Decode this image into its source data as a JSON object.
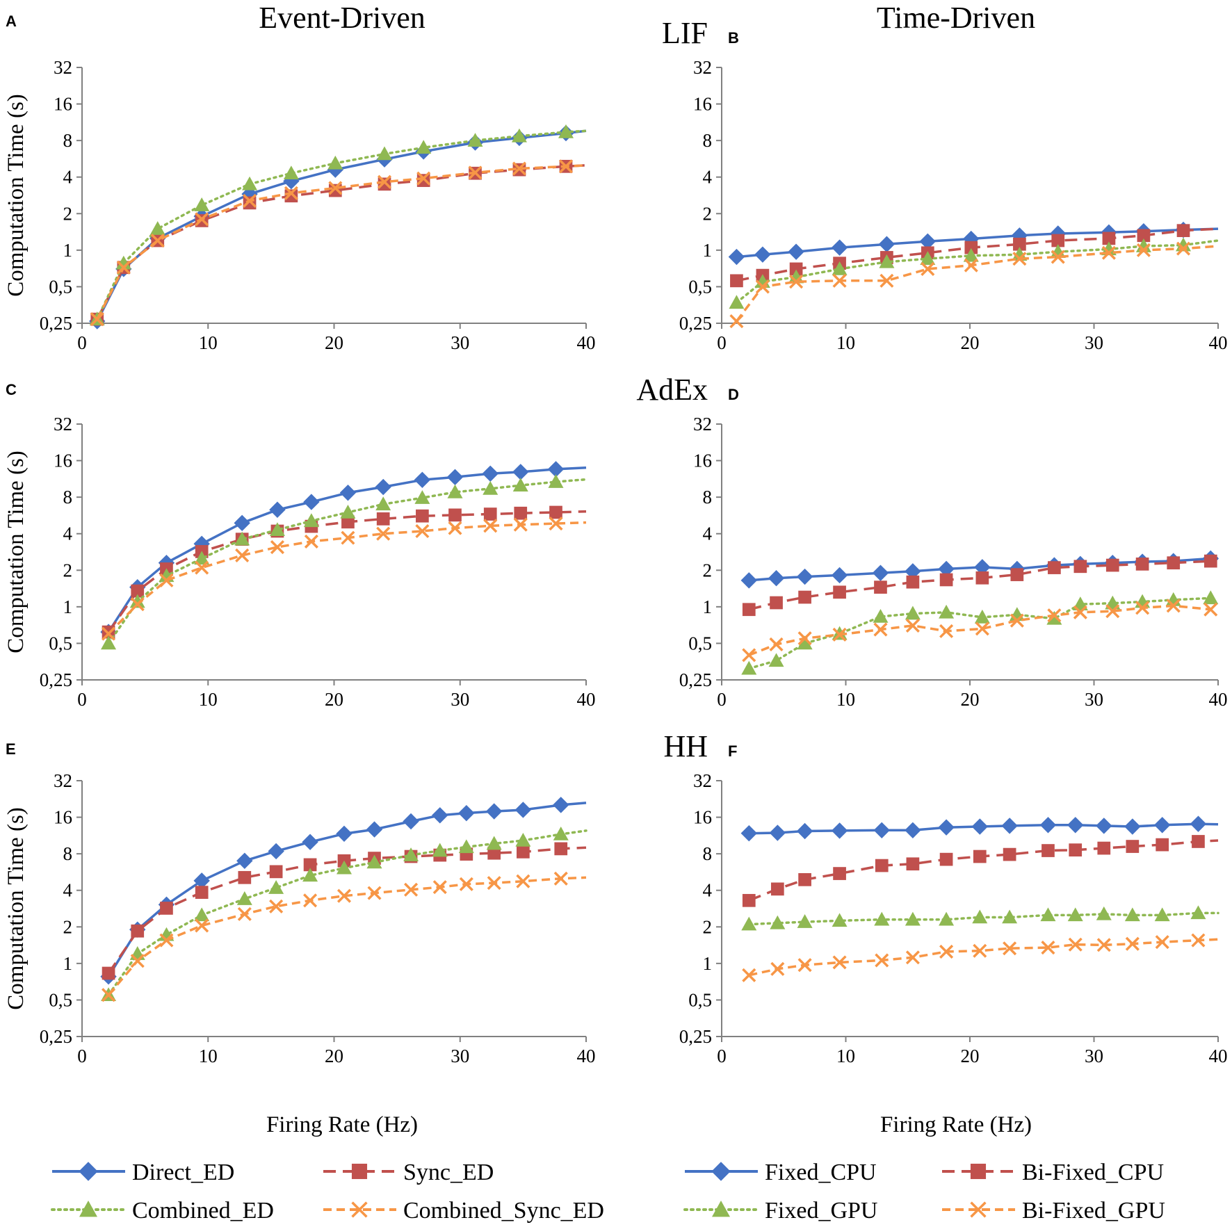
{
  "figure": {
    "col_titles": [
      "Event-Driven",
      "Time-Driven"
    ],
    "row_titles": [
      "LIF",
      "AdEx",
      "HH"
    ],
    "xlabel": "Firing Rate (Hz)",
    "ylabel": "Computation Time (s)"
  },
  "chart_data": [
    {
      "panel": "A",
      "model": "LIF",
      "group": "Event-Driven",
      "type": "line",
      "xlim": [
        0,
        40
      ],
      "xticks": [
        0,
        10,
        20,
        30,
        40
      ],
      "yscale": "log2",
      "ylim": [
        0.25,
        32
      ],
      "ytick_labels": [
        "0,25",
        "0,5",
        "1",
        "2",
        "4",
        "8",
        "16",
        "32"
      ],
      "xlabel": "",
      "ylabel": "Computation Time (s)",
      "series": [
        {
          "name": "Direct_ED",
          "x": [
            1.2,
            3.3,
            6.0,
            9.5,
            13.3,
            16.6,
            20.1,
            24.0,
            27.1,
            31.2,
            34.7,
            38.4,
            40
          ],
          "y": [
            0.26,
            0.7,
            1.25,
            1.9,
            2.9,
            3.7,
            4.6,
            5.6,
            6.5,
            7.7,
            8.4,
            9.2,
            9.6
          ]
        },
        {
          "name": "Sync_ED",
          "x": [
            1.2,
            3.3,
            6.0,
            9.5,
            13.3,
            16.6,
            20.1,
            24.0,
            27.1,
            31.2,
            34.7,
            38.4,
            40
          ],
          "y": [
            0.27,
            0.72,
            1.2,
            1.75,
            2.45,
            2.8,
            3.1,
            3.5,
            3.75,
            4.3,
            4.6,
            4.9,
            5.0
          ]
        },
        {
          "name": "Combined_ED",
          "x": [
            1.2,
            3.3,
            6.0,
            9.5,
            13.3,
            16.6,
            20.1,
            24.0,
            27.1,
            31.2,
            34.7,
            38.4,
            40
          ],
          "y": [
            0.27,
            0.78,
            1.5,
            2.35,
            3.5,
            4.3,
            5.2,
            6.2,
            7.0,
            8.0,
            8.7,
            9.4,
            9.6
          ]
        },
        {
          "name": "Combined_Sync_ED",
          "x": [
            1.2,
            3.3,
            6.0,
            9.5,
            13.3,
            16.6,
            20.1,
            24.0,
            27.1,
            31.2,
            34.7,
            38.4,
            40
          ],
          "y": [
            0.27,
            0.72,
            1.2,
            1.8,
            2.55,
            2.95,
            3.25,
            3.65,
            3.9,
            4.35,
            4.7,
            4.9,
            5.0
          ]
        }
      ]
    },
    {
      "panel": "B",
      "model": "LIF",
      "group": "Time-Driven",
      "type": "line",
      "xlim": [
        0,
        40
      ],
      "xticks": [
        0,
        10,
        20,
        30,
        40
      ],
      "yscale": "log2",
      "ylim": [
        0.25,
        32
      ],
      "ytick_labels": [
        "0,25",
        "0,5",
        "1",
        "2",
        "4",
        "8",
        "16",
        "32"
      ],
      "xlabel": "",
      "ylabel": "",
      "series": [
        {
          "name": "Fixed_CPU",
          "x": [
            1.2,
            3.3,
            6.0,
            9.5,
            13.3,
            16.6,
            20.1,
            24.0,
            27.1,
            31.2,
            34.0,
            37.2,
            40
          ],
          "y": [
            0.88,
            0.92,
            0.97,
            1.05,
            1.12,
            1.18,
            1.24,
            1.32,
            1.37,
            1.4,
            1.43,
            1.47,
            1.5
          ]
        },
        {
          "name": "Bi-Fixed_CPU",
          "x": [
            1.2,
            3.3,
            6.0,
            9.5,
            13.3,
            16.6,
            20.1,
            24.0,
            27.1,
            31.2,
            34.0,
            37.2,
            40
          ],
          "y": [
            0.56,
            0.62,
            0.7,
            0.78,
            0.87,
            0.95,
            1.05,
            1.12,
            1.2,
            1.25,
            1.32,
            1.45,
            1.5
          ]
        },
        {
          "name": "Fixed_GPU",
          "x": [
            1.2,
            3.3,
            6.0,
            9.5,
            13.3,
            16.6,
            20.1,
            24.0,
            27.1,
            31.2,
            34.0,
            37.2,
            40
          ],
          "y": [
            0.37,
            0.55,
            0.6,
            0.7,
            0.8,
            0.85,
            0.9,
            0.92,
            0.97,
            1.02,
            1.08,
            1.1,
            1.2
          ]
        },
        {
          "name": "Bi-Fixed_GPU",
          "x": [
            1.2,
            3.3,
            6.0,
            9.5,
            13.3,
            16.6,
            20.1,
            24.0,
            27.1,
            31.2,
            34.0,
            37.2,
            40
          ],
          "y": [
            0.26,
            0.5,
            0.55,
            0.56,
            0.56,
            0.7,
            0.75,
            0.85,
            0.88,
            0.95,
            1.0,
            1.03,
            1.08
          ]
        }
      ]
    },
    {
      "panel": "C",
      "model": "AdEx",
      "group": "Event-Driven",
      "type": "line",
      "xlim": [
        0,
        40
      ],
      "xticks": [
        0,
        10,
        20,
        30,
        40
      ],
      "yscale": "log2",
      "ylim": [
        0.25,
        32
      ],
      "ytick_labels": [
        "0,25",
        "0,5",
        "1",
        "2",
        "4",
        "8",
        "16",
        "32"
      ],
      "xlabel": "",
      "ylabel": "Computation Time (s)",
      "series": [
        {
          "name": "Direct_ED",
          "x": [
            2.1,
            4.4,
            6.7,
            9.5,
            12.7,
            15.5,
            18.2,
            21.1,
            23.9,
            27.0,
            29.6,
            32.4,
            34.8,
            37.6,
            40
          ],
          "y": [
            0.62,
            1.45,
            2.3,
            3.3,
            4.9,
            6.3,
            7.3,
            8.7,
            9.7,
            11.1,
            11.7,
            12.5,
            12.9,
            13.6,
            14.0
          ]
        },
        {
          "name": "Sync_ED",
          "x": [
            2.1,
            4.4,
            6.7,
            9.5,
            12.7,
            15.5,
            18.2,
            21.1,
            23.9,
            27.0,
            29.6,
            32.4,
            34.8,
            37.6,
            40
          ],
          "y": [
            0.62,
            1.35,
            2.05,
            2.85,
            3.6,
            4.2,
            4.6,
            5.0,
            5.3,
            5.6,
            5.7,
            5.8,
            5.9,
            6.0,
            6.1
          ]
        },
        {
          "name": "Combined_ED",
          "x": [
            2.1,
            4.4,
            6.7,
            9.5,
            12.7,
            15.5,
            18.2,
            21.1,
            23.9,
            27.0,
            29.6,
            32.4,
            34.8,
            37.6,
            40
          ],
          "y": [
            0.5,
            1.1,
            1.8,
            2.5,
            3.6,
            4.3,
            5.1,
            6.0,
            7.0,
            7.9,
            8.8,
            9.4,
            10.0,
            10.7,
            11.2
          ]
        },
        {
          "name": "Combined_Sync_ED",
          "x": [
            2.1,
            4.4,
            6.7,
            9.5,
            12.7,
            15.5,
            18.2,
            21.1,
            23.9,
            27.0,
            29.6,
            32.4,
            34.8,
            37.6,
            40
          ],
          "y": [
            0.6,
            1.05,
            1.65,
            2.1,
            2.65,
            3.1,
            3.45,
            3.7,
            4.0,
            4.2,
            4.45,
            4.65,
            4.75,
            4.85,
            4.95
          ]
        }
      ]
    },
    {
      "panel": "D",
      "model": "AdEx",
      "group": "Time-Driven",
      "type": "line",
      "xlim": [
        0,
        40
      ],
      "xticks": [
        0,
        10,
        20,
        30,
        40
      ],
      "yscale": "log2",
      "ylim": [
        0.25,
        32
      ],
      "ytick_labels": [
        "0,25",
        "0,5",
        "1",
        "2",
        "4",
        "8",
        "16",
        "32"
      ],
      "xlabel": "",
      "ylabel": "",
      "series": [
        {
          "name": "Fixed_CPU",
          "x": [
            2.2,
            4.4,
            6.7,
            9.5,
            12.8,
            15.4,
            18.1,
            21.0,
            23.8,
            26.8,
            28.9,
            31.5,
            33.9,
            36.4,
            39.4,
            40
          ],
          "y": [
            1.65,
            1.72,
            1.77,
            1.82,
            1.9,
            1.96,
            2.05,
            2.12,
            2.05,
            2.2,
            2.25,
            2.3,
            2.35,
            2.38,
            2.5,
            2.5
          ]
        },
        {
          "name": "Bi-Fixed_CPU",
          "x": [
            2.2,
            4.4,
            6.7,
            9.5,
            12.8,
            15.4,
            18.1,
            21.0,
            23.8,
            26.8,
            28.9,
            31.5,
            33.9,
            36.4,
            39.4
          ],
          "y": [
            0.95,
            1.08,
            1.2,
            1.32,
            1.45,
            1.6,
            1.67,
            1.73,
            1.84,
            2.1,
            2.15,
            2.2,
            2.25,
            2.3,
            2.38
          ]
        },
        {
          "name": "Fixed_GPU",
          "x": [
            2.2,
            4.4,
            6.7,
            9.5,
            12.8,
            15.4,
            18.1,
            21.0,
            23.8,
            26.8,
            28.9,
            31.5,
            33.9,
            36.4,
            39.4
          ],
          "y": [
            0.31,
            0.36,
            0.5,
            0.6,
            0.83,
            0.88,
            0.9,
            0.82,
            0.86,
            0.8,
            1.05,
            1.07,
            1.1,
            1.14,
            1.18
          ]
        },
        {
          "name": "Bi-Fixed_GPU",
          "x": [
            2.2,
            4.4,
            6.7,
            9.5,
            12.8,
            15.4,
            18.1,
            21.0,
            23.8,
            26.8,
            28.9,
            31.5,
            33.9,
            36.4,
            39.4
          ],
          "y": [
            0.4,
            0.49,
            0.55,
            0.59,
            0.65,
            0.7,
            0.63,
            0.66,
            0.77,
            0.85,
            0.9,
            0.92,
            0.98,
            1.02,
            0.95
          ]
        }
      ]
    },
    {
      "panel": "E",
      "model": "HH",
      "group": "Event-Driven",
      "type": "line",
      "xlim": [
        0,
        40
      ],
      "xticks": [
        0,
        10,
        20,
        30,
        40
      ],
      "yscale": "log2",
      "ylim": [
        0.25,
        32
      ],
      "ytick_labels": [
        "0,25",
        "0,5",
        "1",
        "2",
        "4",
        "8",
        "16",
        "32"
      ],
      "xlabel": "Firing Rate (Hz)",
      "ylabel": "Computation Time (s)",
      "series": [
        {
          "name": "Direct_ED",
          "x": [
            2.1,
            4.4,
            6.7,
            9.5,
            12.9,
            15.4,
            18.1,
            20.8,
            23.2,
            26.1,
            28.4,
            30.5,
            32.7,
            35.0,
            38.0,
            40
          ],
          "y": [
            0.78,
            1.9,
            3.05,
            4.8,
            7.0,
            8.4,
            10.0,
            11.7,
            12.7,
            14.8,
            16.6,
            17.3,
            17.9,
            18.4,
            20.2,
            21.0
          ]
        },
        {
          "name": "Sync_ED",
          "x": [
            2.1,
            4.4,
            6.7,
            9.5,
            12.9,
            15.4,
            18.1,
            20.8,
            23.2,
            26.1,
            28.4,
            30.5,
            32.7,
            35.0,
            38.0,
            40
          ],
          "y": [
            0.83,
            1.85,
            2.85,
            3.85,
            5.1,
            5.7,
            6.5,
            7.0,
            7.35,
            7.6,
            7.8,
            7.95,
            8.1,
            8.3,
            8.8,
            9.0
          ]
        },
        {
          "name": "Combined_ED",
          "x": [
            2.1,
            4.4,
            6.7,
            9.5,
            12.9,
            15.4,
            18.1,
            20.8,
            23.2,
            26.1,
            28.4,
            30.5,
            32.7,
            35.0,
            38.0,
            40
          ],
          "y": [
            0.55,
            1.2,
            1.72,
            2.5,
            3.4,
            4.2,
            5.3,
            6.1,
            6.8,
            7.8,
            8.5,
            9.1,
            9.7,
            10.3,
            11.6,
            12.4
          ]
        },
        {
          "name": "Combined_Sync_ED",
          "x": [
            2.1,
            4.4,
            6.7,
            9.5,
            12.9,
            15.4,
            18.1,
            20.8,
            23.2,
            26.1,
            28.4,
            30.5,
            32.7,
            35.0,
            38.0,
            40
          ],
          "y": [
            0.55,
            1.05,
            1.55,
            2.05,
            2.55,
            2.95,
            3.3,
            3.6,
            3.8,
            4.05,
            4.25,
            4.5,
            4.6,
            4.75,
            5.0,
            5.1
          ]
        }
      ]
    },
    {
      "panel": "F",
      "model": "HH",
      "group": "Time-Driven",
      "type": "line",
      "xlim": [
        0,
        40
      ],
      "xticks": [
        0,
        10,
        20,
        30,
        40
      ],
      "yscale": "log2",
      "ylim": [
        0.25,
        32
      ],
      "ytick_labels": [
        "0,25",
        "0,5",
        "1",
        "2",
        "4",
        "8",
        "16",
        "32"
      ],
      "xlabel": "Firing Rate (Hz)",
      "ylabel": "",
      "series": [
        {
          "name": "Fixed_CPU",
          "x": [
            2.2,
            4.5,
            6.7,
            9.5,
            12.9,
            15.4,
            18.1,
            20.8,
            23.2,
            26.3,
            28.5,
            30.8,
            33.1,
            35.5,
            38.4,
            40
          ],
          "y": [
            11.8,
            11.9,
            12.3,
            12.4,
            12.5,
            12.5,
            13.2,
            13.4,
            13.6,
            13.8,
            13.8,
            13.6,
            13.4,
            13.8,
            14.1,
            14.0
          ]
        },
        {
          "name": "Bi-Fixed_CPU",
          "x": [
            2.2,
            4.5,
            6.7,
            9.5,
            12.9,
            15.4,
            18.1,
            20.8,
            23.2,
            26.3,
            28.5,
            30.8,
            33.1,
            35.5,
            38.4,
            40
          ],
          "y": [
            3.3,
            4.1,
            4.9,
            5.5,
            6.4,
            6.6,
            7.2,
            7.6,
            7.9,
            8.5,
            8.6,
            8.9,
            9.2,
            9.5,
            10.1,
            10.3
          ]
        },
        {
          "name": "Fixed_GPU",
          "x": [
            2.2,
            4.5,
            6.7,
            9.5,
            12.9,
            15.4,
            18.1,
            20.8,
            23.2,
            26.3,
            28.5,
            30.8,
            33.1,
            35.5,
            38.4,
            40
          ],
          "y": [
            2.1,
            2.15,
            2.2,
            2.25,
            2.3,
            2.3,
            2.3,
            2.4,
            2.4,
            2.5,
            2.5,
            2.55,
            2.5,
            2.5,
            2.6,
            2.6
          ]
        },
        {
          "name": "Bi-Fixed_GPU",
          "x": [
            2.2,
            4.5,
            6.7,
            9.5,
            12.9,
            15.4,
            18.1,
            20.8,
            23.2,
            26.3,
            28.5,
            30.8,
            33.1,
            35.5,
            38.4,
            40
          ],
          "y": [
            0.8,
            0.9,
            0.97,
            1.02,
            1.06,
            1.12,
            1.25,
            1.27,
            1.33,
            1.35,
            1.43,
            1.42,
            1.45,
            1.5,
            1.55,
            1.58
          ]
        }
      ]
    }
  ],
  "legend": {
    "left": [
      "Direct_ED",
      "Sync_ED",
      "Combined_ED",
      "Combined_Sync_ED"
    ],
    "right": [
      "Fixed_CPU",
      "Bi-Fixed_CPU",
      "Fixed_GPU",
      "Bi-Fixed_GPU"
    ]
  },
  "styles": {
    "Direct_ED": {
      "color": "#4472c4",
      "marker": "diamond",
      "dash": "solid"
    },
    "Fixed_CPU": {
      "color": "#4472c4",
      "marker": "diamond",
      "dash": "solid"
    },
    "Sync_ED": {
      "color": "#c0504d",
      "marker": "square",
      "dash": "dashed"
    },
    "Bi-Fixed_CPU": {
      "color": "#c0504d",
      "marker": "square",
      "dash": "dashed"
    },
    "Combined_ED": {
      "color": "#8fb852",
      "marker": "triangle",
      "dash": "dotted"
    },
    "Fixed_GPU": {
      "color": "#8fb852",
      "marker": "triangle",
      "dash": "dotted"
    },
    "Combined_Sync_ED": {
      "color": "#f79646",
      "marker": "x",
      "dash": "dashdot"
    },
    "Bi-Fixed_GPU": {
      "color": "#f79646",
      "marker": "x",
      "dash": "dashdot"
    }
  }
}
